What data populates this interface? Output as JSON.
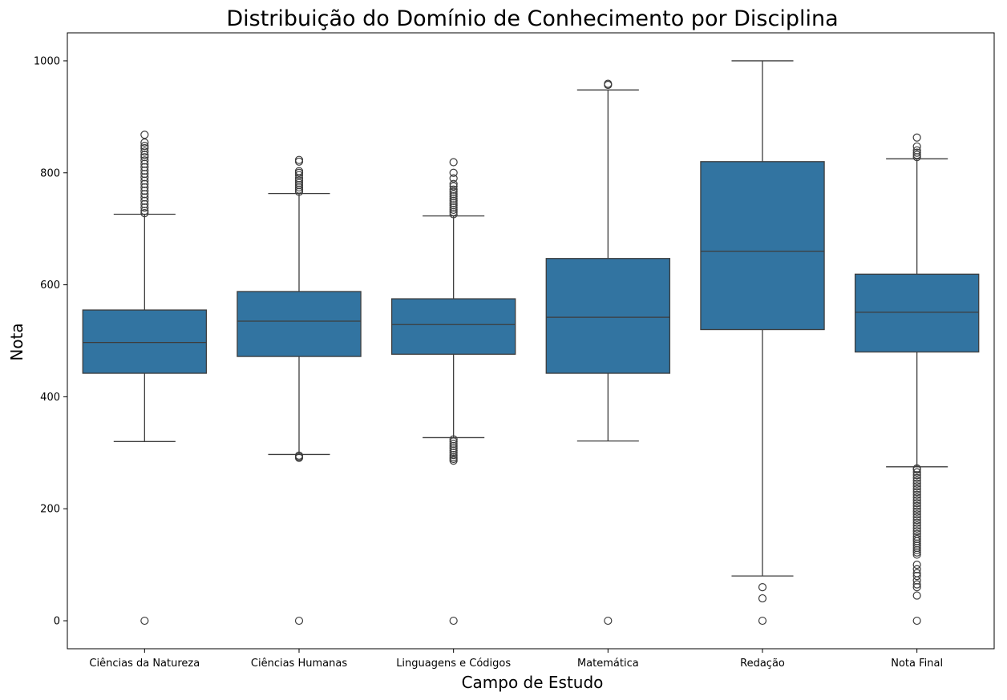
{
  "chart_data": {
    "type": "box",
    "title": "Distribuição do Domínio de Conhecimento por Disciplina",
    "xlabel": "Campo de Estudo",
    "ylabel": "Nota",
    "ylim": [
      -50,
      1050
    ],
    "yticks": [
      0,
      200,
      400,
      600,
      800,
      1000
    ],
    "grid": false,
    "legend": "none",
    "colors": {
      "box": "#3274a1",
      "line": "#3d3d3d"
    },
    "categories": [
      "Ciências da Natureza",
      "Ciências Humanas",
      "Linguagens e Códigos",
      "Matemática",
      "Redação",
      "Nota Final"
    ],
    "boxes": [
      {
        "category": "Ciências da Natureza",
        "whislo": 320,
        "q1": 442,
        "med": 497,
        "q3": 555,
        "whishi": 726,
        "outliers": [
          0,
          728,
          732,
          738,
          744,
          750,
          756,
          762,
          768,
          774,
          780,
          786,
          792,
          798,
          804,
          810,
          816,
          822,
          828,
          832,
          838,
          844,
          848,
          854,
          868
        ]
      },
      {
        "category": "Ciências Humanas",
        "whislo": 297,
        "q1": 472,
        "med": 535,
        "q3": 588,
        "whishi": 763,
        "outliers": [
          0,
          291,
          293,
          295,
          766,
          770,
          774,
          778,
          782,
          786,
          790,
          796,
          800,
          803,
          820,
          823
        ]
      },
      {
        "category": "Linguagens e Códigos",
        "whislo": 327,
        "q1": 476,
        "med": 529,
        "q3": 575,
        "whishi": 723,
        "outliers": [
          0,
          286,
          289,
          292,
          296,
          300,
          304,
          308,
          312,
          316,
          320,
          324,
          726,
          730,
          734,
          738,
          742,
          746,
          750,
          754,
          758,
          762,
          766,
          770,
          776,
          780,
          790,
          800,
          819
        ]
      },
      {
        "category": "Matemática",
        "whislo": 321,
        "q1": 442,
        "med": 542,
        "q3": 647,
        "whishi": 948,
        "outliers": [
          0,
          957,
          959
        ]
      },
      {
        "category": "Redação",
        "whislo": 80,
        "q1": 520,
        "med": 660,
        "q3": 820,
        "whishi": 1000,
        "outliers": [
          0,
          40,
          60
        ]
      },
      {
        "category": "Nota Final",
        "whislo": 275,
        "q1": 480,
        "med": 551,
        "q3": 619,
        "whishi": 825,
        "outliers": [
          0,
          45,
          60,
          65,
          72,
          80,
          85,
          92,
          100,
          118,
          122,
          126,
          130,
          134,
          138,
          142,
          146,
          150,
          155,
          160,
          165,
          170,
          175,
          180,
          185,
          190,
          195,
          200,
          205,
          210,
          215,
          220,
          225,
          230,
          235,
          240,
          245,
          250,
          255,
          260,
          265,
          270,
          272,
          828,
          832,
          836,
          840,
          847,
          863
        ]
      }
    ]
  }
}
